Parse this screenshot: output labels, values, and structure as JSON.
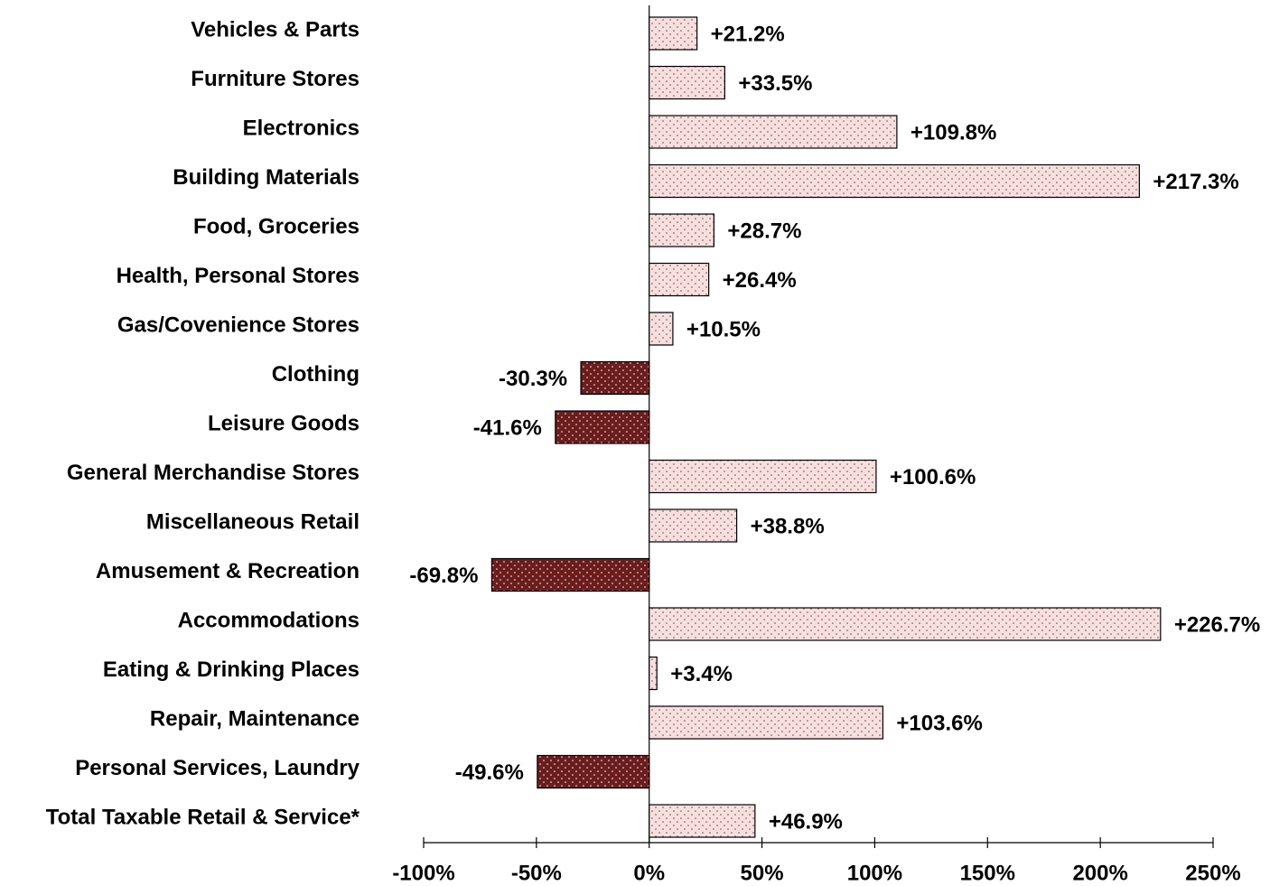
{
  "chart_data": {
    "type": "bar",
    "orientation": "horizontal",
    "categories": [
      "Vehicles & Parts",
      "Furniture Stores",
      "Electronics",
      "Building Materials",
      "Food, Groceries",
      "Health, Personal Stores",
      "Gas/Covenience Stores",
      "Clothing",
      "Leisure Goods",
      "General Merchandise Stores",
      "Miscellaneous Retail",
      "Amusement & Recreation",
      "Accommodations",
      "Eating & Drinking Places",
      "Repair, Maintenance",
      "Personal Services, Laundry",
      "Total Taxable Retail & Service*"
    ],
    "values": [
      21.2,
      33.5,
      109.8,
      217.3,
      28.7,
      26.4,
      10.5,
      -30.3,
      -41.6,
      100.6,
      38.8,
      -69.8,
      226.7,
      3.4,
      103.6,
      -49.6,
      46.9
    ],
    "value_labels": [
      "+21.2%",
      "+33.5%",
      "+109.8%",
      "+217.3%",
      "+28.7%",
      "+26.4%",
      "+10.5%",
      "-30.3%",
      "-41.6%",
      "+100.6%",
      "+38.8%",
      "-69.8%",
      "+226.7%",
      "+3.4%",
      "+103.6%",
      "-49.6%",
      "+46.9%"
    ],
    "color": "#f9dede",
    "negative_color": "#6b1d1d",
    "xlim": [
      -100,
      250
    ],
    "xticks": [
      {
        "value": -100,
        "label": "-100%"
      },
      {
        "value": -50,
        "label": "-50%"
      },
      {
        "value": 0,
        "label": "0%"
      },
      {
        "value": 50,
        "label": "50%"
      },
      {
        "value": 100,
        "label": "100%"
      },
      {
        "value": 150,
        "label": "150%"
      },
      {
        "value": 200,
        "label": "200%"
      },
      {
        "value": 250,
        "label": "250%"
      }
    ],
    "grid": false
  }
}
